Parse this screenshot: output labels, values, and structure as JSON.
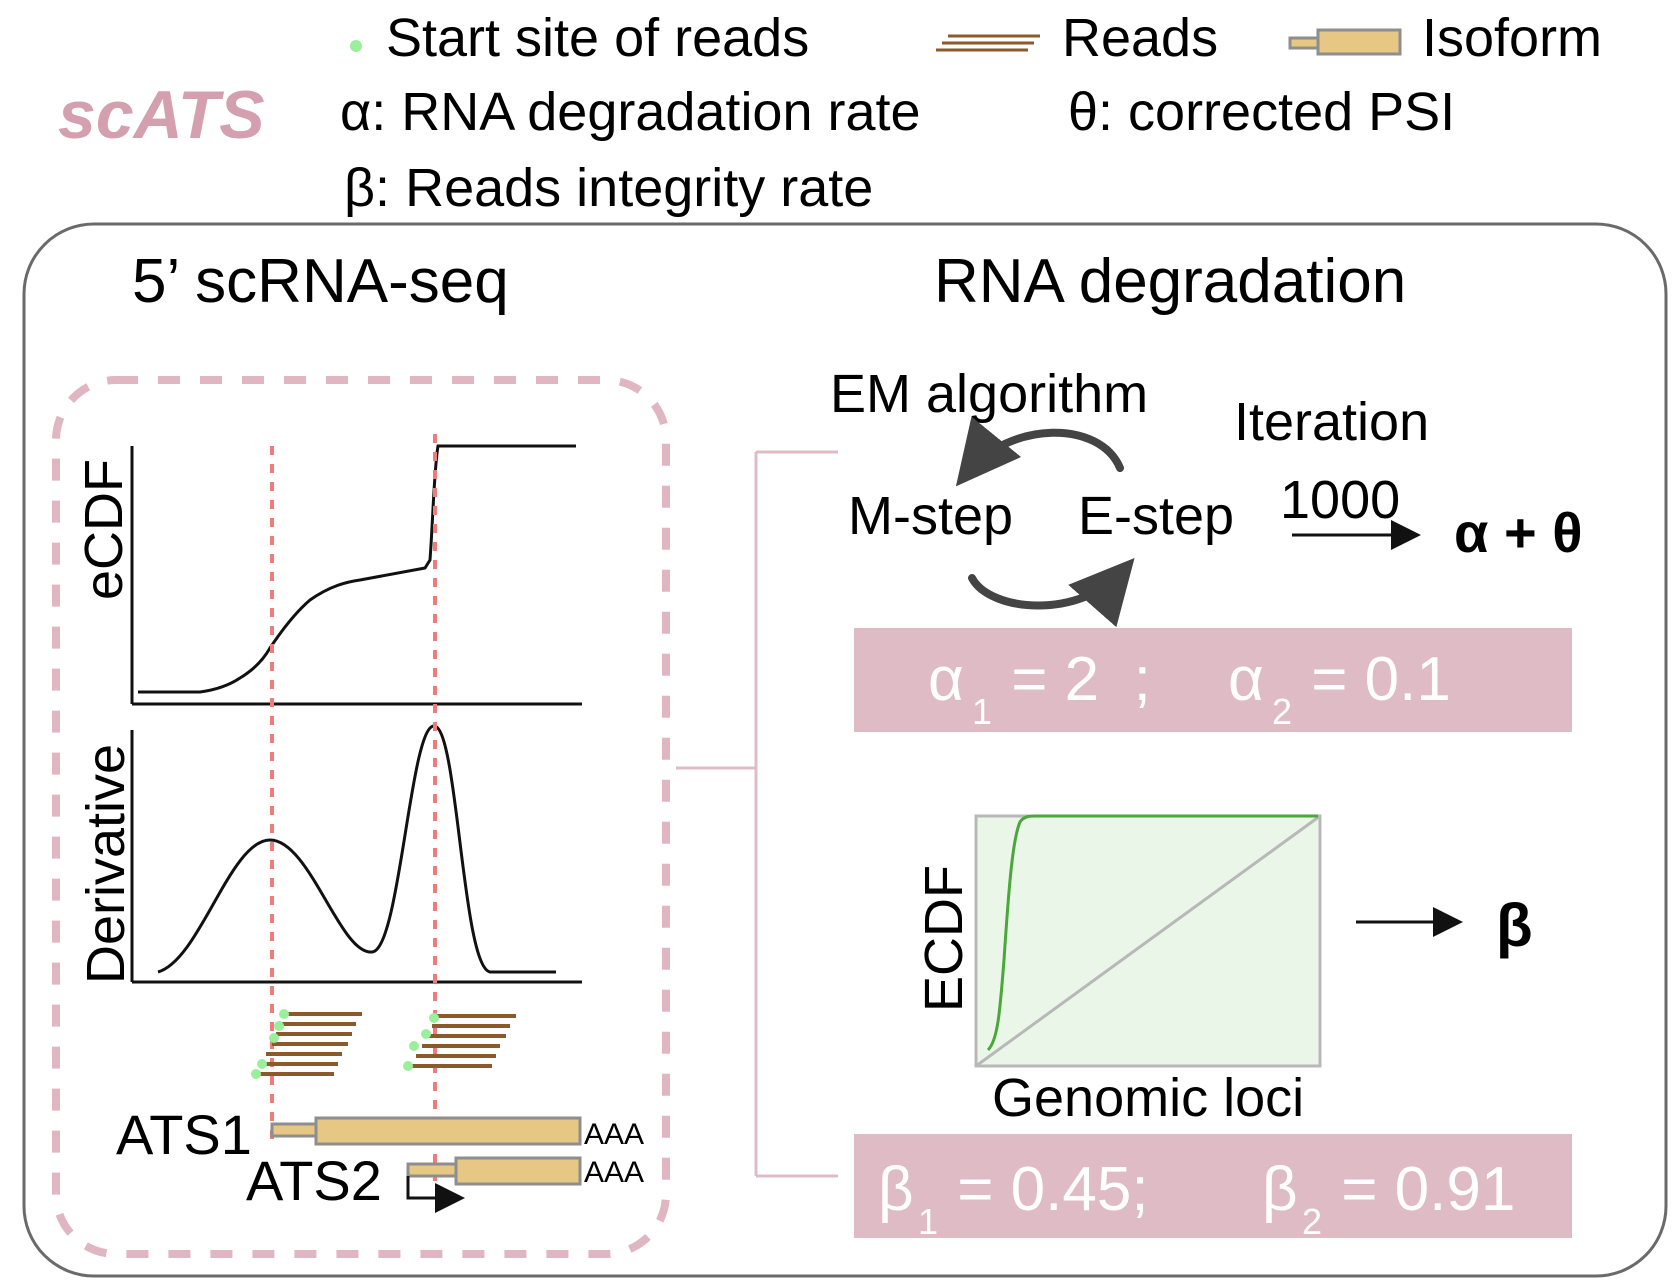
{
  "brand": {
    "title": "scATS",
    "color": "#d4a0b0"
  },
  "legend": {
    "start_site": "Start site of reads",
    "reads": "Reads",
    "isoform": "Isoform",
    "alpha_def": "α: RNA degradation rate",
    "theta_def": "θ: corrected PSI",
    "beta_def": "β: Reads integrity rate"
  },
  "left_panel": {
    "title": "5’ scRNA-seq",
    "ecdf_label": "eCDF",
    "derivative_label": "Derivative",
    "ats1": "ATS1",
    "ats2": "ATS2",
    "polya": "AAA"
  },
  "right_panel": {
    "title": "RNA degradation",
    "em_label": "EM algorithm",
    "iteration_label": "Iteration",
    "iteration_count": "1000",
    "m_step": "M-step",
    "e_step": "E-step",
    "alpha_theta": "α + θ",
    "alpha_box": {
      "a1_sym": "α",
      "a1_sub": "1",
      "a1_val": " = 2  ;",
      "a2_sym": "α",
      "a2_sub": "2",
      "a2_val": " = 0.1"
    },
    "ecdf_axis": "ECDF",
    "genomic_axis": "Genomic loci",
    "beta": "β",
    "beta_box": {
      "b1_sym": "β",
      "b1_sub": "1",
      "b1_val": " = 0.45;",
      "b2_sym": "β",
      "b2_sub": "2",
      "b2_val": " = 0.91"
    }
  },
  "colors": {
    "pink_box": "#dfbcc5",
    "dashed_frame": "#e0b6c3",
    "red_dash": "#ef7b7b",
    "reads": "#8b5a2b",
    "start_dot": "#9af09a",
    "isoform_fill": "#e7c784",
    "isoform_stroke": "#8e8e8e",
    "green_curve": "#4aa83a",
    "green_fill": "#eaf6e8"
  }
}
